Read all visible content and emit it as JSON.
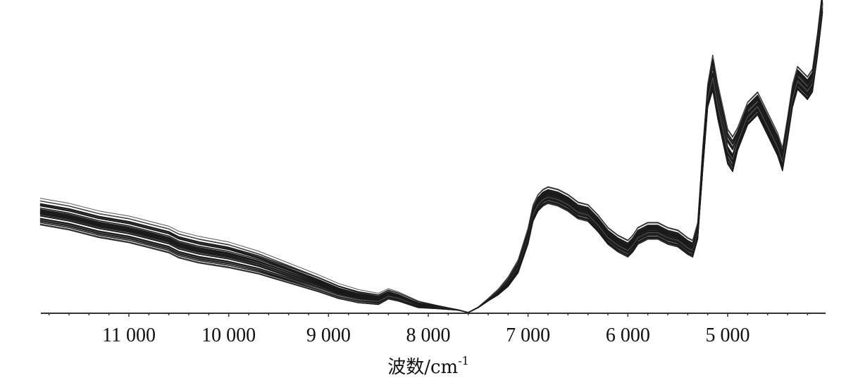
{
  "chart_data": {
    "type": "line",
    "title": "",
    "xlabel": "波数/cm",
    "xlabel_superscript": "-1",
    "ylabel": "",
    "x_reversed": true,
    "xlim": [
      12000,
      4000
    ],
    "ylim": [
      0,
      1.2
    ],
    "xticks": [
      11000,
      10000,
      9000,
      8000,
      7000,
      6000,
      5000
    ],
    "xtick_labels": [
      "11 000",
      "10 000",
      "9 000",
      "8 000",
      "7 000",
      "6 000",
      "5 000"
    ],
    "yaxis_visible": false,
    "grid": false,
    "line_color": "#1a1a1a",
    "spectra_count": 40,
    "baseline_spectrum": {
      "x": [
        11890,
        11600,
        11300,
        11000,
        10800,
        10600,
        10500,
        10300,
        10000,
        9700,
        9400,
        9100,
        8900,
        8700,
        8500,
        8400,
        8300,
        8100,
        7900,
        7700,
        7600,
        7500,
        7400,
        7300,
        7200,
        7100,
        7000,
        6950,
        6900,
        6850,
        6800,
        6700,
        6600,
        6500,
        6400,
        6300,
        6200,
        6100,
        6000,
        5950,
        5900,
        5850,
        5800,
        5700,
        5600,
        5500,
        5400,
        5350,
        5300,
        5250,
        5200,
        5150,
        5100,
        5000,
        4950,
        4900,
        4800,
        4700,
        4600,
        4500,
        4450,
        4400,
        4350,
        4300,
        4250,
        4200,
        4150,
        4100,
        4050
      ],
      "y": [
        0.39,
        0.37,
        0.34,
        0.32,
        0.3,
        0.28,
        0.26,
        0.24,
        0.22,
        0.19,
        0.15,
        0.11,
        0.08,
        0.06,
        0.05,
        0.07,
        0.06,
        0.03,
        0.02,
        0.01,
        0.0,
        0.02,
        0.05,
        0.08,
        0.12,
        0.18,
        0.3,
        0.39,
        0.43,
        0.45,
        0.46,
        0.45,
        0.43,
        0.4,
        0.39,
        0.35,
        0.3,
        0.27,
        0.25,
        0.27,
        0.3,
        0.31,
        0.32,
        0.32,
        0.3,
        0.29,
        0.26,
        0.25,
        0.32,
        0.6,
        0.85,
        0.94,
        0.83,
        0.65,
        0.62,
        0.68,
        0.78,
        0.82,
        0.74,
        0.66,
        0.6,
        0.72,
        0.85,
        0.92,
        0.9,
        0.88,
        0.91,
        1.05,
        1.22
      ]
    }
  }
}
